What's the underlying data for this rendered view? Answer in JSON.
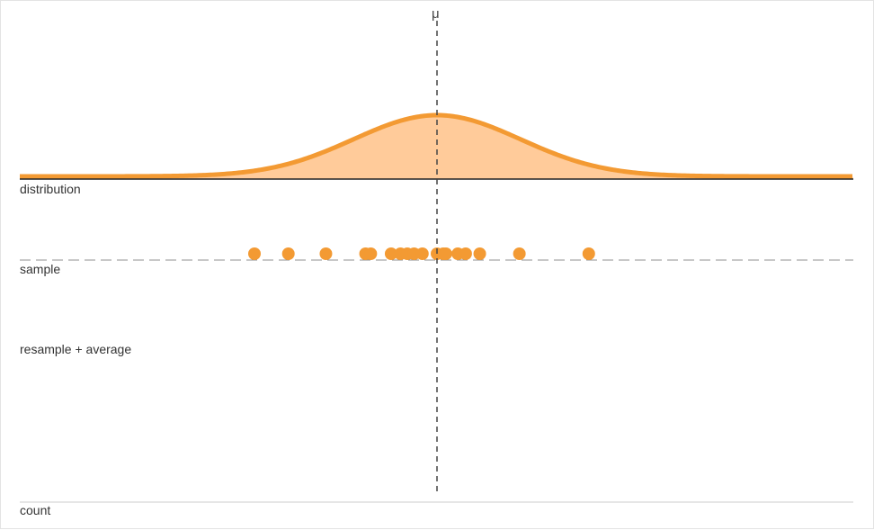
{
  "title": "",
  "mean_marker": {
    "label": "μ",
    "value": 0
  },
  "rows": {
    "distribution": "distribution",
    "sample": "sample",
    "resample": "resample + average",
    "count": "count"
  },
  "colors": {
    "accent": "#f39a33",
    "fill": "#ffcb9a",
    "axis": "#222222",
    "baseline": "#cccccc",
    "dash": "#444444"
  },
  "chart_data": {
    "type": "scatter",
    "distribution": {
      "shape": "normal",
      "mean": 0,
      "sd": 1.6
    },
    "x_range": [
      -8,
      8
    ],
    "sample": [
      -3.5,
      -2.85,
      -2.13,
      -1.37,
      -1.27,
      -0.88,
      -0.7,
      -0.57,
      -0.44,
      -0.28,
      0,
      0.12,
      0.17,
      0.4,
      0.55,
      0.82,
      1.58,
      2.91
    ]
  }
}
